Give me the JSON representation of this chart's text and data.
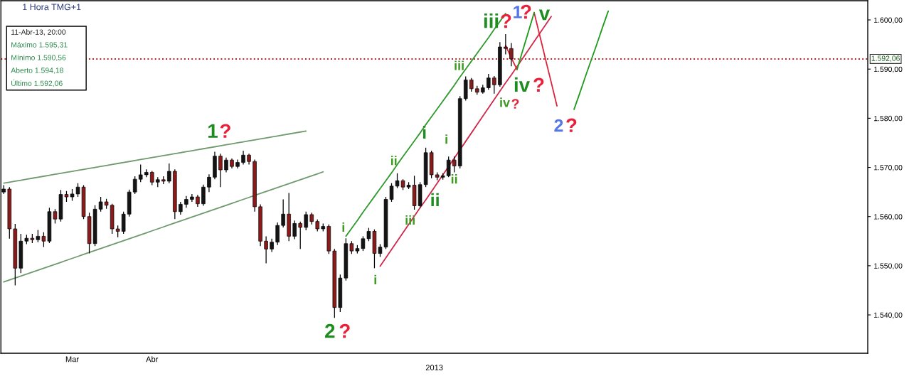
{
  "chart_data": {
    "type": "candlestick",
    "title": "1 Hora TMG+1",
    "xlabel": "2013",
    "categories": [
      null,
      null,
      null,
      null,
      null,
      null,
      null,
      null,
      null,
      null,
      null,
      null,
      "Mar",
      null,
      null,
      null,
      null,
      null,
      null,
      null,
      null,
      null,
      null,
      null,
      null,
      null,
      "Abr",
      null,
      null,
      null,
      null,
      null,
      null,
      null,
      null,
      null,
      null,
      null,
      null,
      null,
      null,
      null,
      null,
      null,
      null,
      null,
      null,
      null,
      null,
      null,
      null,
      null,
      null,
      null,
      null,
      null,
      null,
      null,
      null,
      null,
      null,
      null,
      null,
      null,
      null,
      null,
      null,
      null,
      null,
      null,
      null,
      null,
      null,
      null,
      null,
      null,
      null,
      null,
      null,
      null,
      null,
      null,
      null,
      null,
      null,
      null,
      null,
      null,
      null,
      null,
      null,
      null,
      null,
      null,
      null,
      null,
      null,
      null,
      null,
      null,
      null,
      null,
      null,
      null,
      null,
      null,
      null,
      null,
      null,
      null,
      null,
      null,
      null,
      null,
      null,
      null,
      null,
      null,
      null,
      null,
      null,
      null,
      null,
      null,
      null,
      null,
      null,
      null,
      null,
      null,
      null,
      null,
      null,
      null,
      null,
      null,
      null,
      null,
      null,
      null,
      null,
      null,
      null,
      null,
      null,
      null,
      null,
      null,
      null,
      null,
      null,
      null
    ],
    "ohlc": [
      [
        1565.0,
        1566.4,
        1564.6,
        1565.6
      ],
      [
        1565.6,
        1566.0,
        1555.5,
        1557.5
      ],
      [
        1557.5,
        1558.5,
        1546.0,
        1549.5
      ],
      [
        1549.5,
        1556.5,
        1548.5,
        1555.0
      ],
      [
        1555.0,
        1556.3,
        1554.4,
        1555.6
      ],
      [
        1555.6,
        1556.5,
        1554.6,
        1555.3
      ],
      [
        1555.3,
        1557.3,
        1554.8,
        1556.0
      ],
      [
        1556.0,
        1556.8,
        1553.8,
        1555.0
      ],
      [
        1555.0,
        1561.8,
        1554.6,
        1561.0
      ],
      [
        1561.0,
        1561.5,
        1558.6,
        1559.5
      ],
      [
        1559.5,
        1565.4,
        1559.0,
        1564.5
      ],
      [
        1564.5,
        1565.2,
        1563.0,
        1564.0
      ],
      [
        1564.0,
        1565.6,
        1563.2,
        1564.6
      ],
      [
        1564.6,
        1566.8,
        1564.0,
        1566.0
      ],
      [
        1566.0,
        1566.4,
        1559.5,
        1560.0
      ],
      [
        1560.0,
        1560.8,
        1552.5,
        1554.5
      ],
      [
        1554.5,
        1562.3,
        1554.0,
        1561.5
      ],
      [
        1561.5,
        1564.0,
        1561.0,
        1563.0
      ],
      [
        1563.0,
        1563.6,
        1561.6,
        1562.3
      ],
      [
        1562.3,
        1562.6,
        1556.5,
        1557.5
      ],
      [
        1557.5,
        1558.2,
        1555.8,
        1557.0
      ],
      [
        1557.0,
        1561.0,
        1556.5,
        1560.5
      ],
      [
        1560.5,
        1565.5,
        1560.0,
        1565.0
      ],
      [
        1565.0,
        1568.2,
        1564.6,
        1567.6
      ],
      [
        1567.6,
        1570.6,
        1567.0,
        1568.5
      ],
      [
        1568.5,
        1569.6,
        1568.0,
        1569.0
      ],
      [
        1569.0,
        1569.3,
        1566.4,
        1567.0
      ],
      [
        1567.0,
        1568.0,
        1566.0,
        1567.5
      ],
      [
        1567.5,
        1568.2,
        1566.6,
        1567.2
      ],
      [
        1567.2,
        1570.8,
        1566.8,
        1569.2
      ],
      [
        1569.2,
        1569.6,
        1559.5,
        1561.0
      ],
      [
        1561.0,
        1563.0,
        1560.4,
        1562.5
      ],
      [
        1562.5,
        1564.2,
        1561.8,
        1563.5
      ],
      [
        1563.5,
        1564.6,
        1563.0,
        1564.0
      ],
      [
        1564.0,
        1564.4,
        1562.0,
        1562.6
      ],
      [
        1562.6,
        1566.5,
        1562.2,
        1566.0
      ],
      [
        1566.0,
        1568.6,
        1565.0,
        1568.0
      ],
      [
        1568.0,
        1573.2,
        1567.6,
        1572.3
      ],
      [
        1572.3,
        1572.8,
        1566.0,
        1569.5
      ],
      [
        1569.5,
        1572.0,
        1569.0,
        1571.5
      ],
      [
        1571.5,
        1571.8,
        1569.8,
        1570.2
      ],
      [
        1570.2,
        1571.6,
        1569.8,
        1571.0
      ],
      [
        1571.0,
        1573.4,
        1570.6,
        1572.5
      ],
      [
        1572.5,
        1572.8,
        1570.6,
        1571.2
      ],
      [
        1571.2,
        1571.6,
        1561.0,
        1562.0
      ],
      [
        1562.0,
        1562.5,
        1554.0,
        1555.0
      ],
      [
        1555.0,
        1556.0,
        1550.5,
        1553.4
      ],
      [
        1553.4,
        1555.5,
        1552.8,
        1554.8
      ],
      [
        1554.8,
        1558.8,
        1554.2,
        1558.2
      ],
      [
        1558.2,
        1563.5,
        1557.8,
        1560.5
      ],
      [
        1560.5,
        1564.8,
        1555.0,
        1556.0
      ],
      [
        1556.0,
        1559.2,
        1555.4,
        1558.6
      ],
      [
        1558.6,
        1559.0,
        1553.4,
        1557.8
      ],
      [
        1557.8,
        1561.0,
        1557.2,
        1560.4
      ],
      [
        1560.4,
        1560.8,
        1558.4,
        1559.0
      ],
      [
        1559.0,
        1559.4,
        1557.0,
        1557.5
      ],
      [
        1557.5,
        1558.6,
        1557.0,
        1558.0
      ],
      [
        1558.0,
        1558.4,
        1552.4,
        1553.0
      ],
      [
        1553.0,
        1553.4,
        1539.4,
        1541.5
      ],
      [
        1541.5,
        1548.2,
        1540.6,
        1547.5
      ],
      [
        1547.5,
        1555.6,
        1547.0,
        1554.5
      ],
      [
        1554.5,
        1555.0,
        1552.4,
        1553.0
      ],
      [
        1553.0,
        1554.2,
        1552.5,
        1553.5
      ],
      [
        1553.5,
        1556.0,
        1553.0,
        1555.5
      ],
      [
        1555.5,
        1557.7,
        1555.0,
        1557.0
      ],
      [
        1557.0,
        1557.4,
        1549.5,
        1552.5
      ],
      [
        1552.5,
        1554.4,
        1551.8,
        1553.8
      ],
      [
        1553.8,
        1564.0,
        1553.4,
        1563.5
      ],
      [
        1563.5,
        1566.8,
        1563.0,
        1566.2
      ],
      [
        1566.2,
        1568.8,
        1565.8,
        1567.3
      ],
      [
        1567.3,
        1567.6,
        1565.4,
        1566.0
      ],
      [
        1566.0,
        1567.0,
        1565.6,
        1566.4
      ],
      [
        1566.4,
        1568.3,
        1561.4,
        1562.2
      ],
      [
        1562.2,
        1567.0,
        1561.8,
        1566.5
      ],
      [
        1566.5,
        1574.0,
        1566.0,
        1573.0
      ],
      [
        1573.0,
        1573.4,
        1567.8,
        1568.5
      ],
      [
        1568.5,
        1569.0,
        1567.4,
        1568.0
      ],
      [
        1568.0,
        1568.8,
        1567.5,
        1568.3
      ],
      [
        1568.3,
        1572.2,
        1568.0,
        1571.5
      ],
      [
        1571.5,
        1572.2,
        1569.0,
        1570.3
      ],
      [
        1570.3,
        1584.5,
        1569.8,
        1584.0
      ],
      [
        1584.0,
        1588.5,
        1583.6,
        1587.8
      ],
      [
        1587.8,
        1588.2,
        1585.4,
        1586.0
      ],
      [
        1586.0,
        1586.6,
        1584.8,
        1585.3
      ],
      [
        1585.3,
        1586.8,
        1585.0,
        1586.2
      ],
      [
        1586.2,
        1589.0,
        1585.8,
        1588.2
      ],
      [
        1588.2,
        1588.6,
        1585.0,
        1586.8
      ],
      [
        1586.8,
        1595.5,
        1586.4,
        1594.5
      ],
      [
        1594.5,
        1597.1,
        1593.0,
        1594.2
      ],
      [
        1594.18,
        1595.31,
        1590.56,
        1592.06
      ],
      null,
      null,
      null,
      null,
      null,
      null,
      null,
      null,
      null,
      null,
      null,
      null,
      null,
      null,
      null,
      null,
      null,
      null,
      null,
      null,
      null,
      null,
      null,
      null,
      null,
      null,
      null,
      null,
      null,
      null,
      null,
      null,
      null,
      null,
      null,
      null,
      null,
      null,
      null,
      null,
      null,
      null,
      null,
      null,
      null,
      null,
      null,
      null,
      null,
      null,
      null,
      null,
      null,
      null,
      null,
      null,
      null,
      null,
      null,
      null,
      null,
      null
    ],
    "colors": [
      "#141414",
      "#8b1a1a",
      "#8b1a1a",
      "#141414",
      "#141414",
      "#8b1a1a",
      "#141414",
      "#8b1a1a",
      "#141414",
      "#8b1a1a",
      "#141414",
      "#8b1a1a",
      "#141414",
      "#141414",
      "#8b1a1a",
      "#8b1a1a",
      "#141414",
      "#141414",
      "#8b1a1a",
      "#8b1a1a",
      "#8b1a1a",
      "#141414",
      "#141414",
      "#141414",
      "#141414",
      "#141414",
      "#8b1a1a",
      "#141414",
      "#8b1a1a",
      "#141414",
      "#8b1a1a",
      "#141414",
      "#141414",
      "#141414",
      "#8b1a1a",
      "#141414",
      "#141414",
      "#141414",
      "#8b1a1a",
      "#141414",
      "#8b1a1a",
      "#141414",
      "#141414",
      "#8b1a1a",
      "#8b1a1a",
      "#8b1a1a",
      "#8b1a1a",
      "#141414",
      "#141414",
      "#141414",
      "#8b1a1a",
      "#141414",
      "#8b1a1a",
      "#141414",
      "#8b1a1a",
      "#8b1a1a",
      "#141414",
      "#8b1a1a",
      "#8b1a1a",
      "#141414",
      "#141414",
      "#8b1a1a",
      "#141414",
      "#141414",
      "#141414",
      "#8b1a1a",
      "#141414",
      "#141414",
      "#141414",
      "#141414",
      "#8b1a1a",
      "#141414",
      "#8b1a1a",
      "#141414",
      "#141414",
      "#8b1a1a",
      "#8b1a1a",
      "#141414",
      "#141414",
      "#8b1a1a",
      "#141414",
      "#141414",
      "#8b1a1a",
      "#8b1a1a",
      "#141414",
      "#141414",
      "#8b1a1a",
      "#141414",
      "#8b1a1a",
      "#8b1a1a",
      null,
      null,
      null,
      null,
      null,
      null,
      null,
      null,
      null,
      null,
      null,
      null,
      null,
      null,
      null,
      null,
      null,
      null,
      null,
      null,
      null,
      null,
      null,
      null,
      null,
      null,
      null,
      null,
      null,
      null,
      null,
      null,
      null,
      null,
      null,
      null,
      null,
      null,
      null,
      null,
      null,
      null,
      null,
      null,
      null,
      null,
      null,
      null,
      null,
      null,
      null,
      null,
      null,
      null,
      null,
      null,
      null,
      null,
      null,
      null,
      null,
      null
    ],
    "series": [
      {
        "type": "line",
        "color": "#6f9a6f",
        "values": [
          1566.8,
          1567.0,
          1567.2,
          1567.4,
          1567.6,
          1567.8,
          1568.0,
          1568.2,
          1568.4,
          1568.6,
          1568.8,
          1569.0,
          1569.2,
          1569.4,
          1569.6,
          1569.8,
          1570.0,
          1570.2,
          1570.4,
          1570.6,
          1570.8,
          1571.0,
          1571.2,
          1571.4,
          1571.6,
          1571.8,
          1572.0,
          1572.2,
          1572.4,
          1572.6,
          1572.8,
          1573.0,
          1573.2,
          1573.4,
          1573.6,
          1573.8,
          1574.0,
          1574.2,
          1574.4,
          1574.6,
          1574.8,
          1575.0,
          1575.2,
          1575.4,
          1575.6,
          1575.8,
          1576.0,
          1576.2,
          1576.4,
          1576.6,
          1576.8,
          1577.0,
          1577.2,
          1577.4,
          null,
          null,
          null,
          null,
          null,
          null,
          null,
          null,
          null,
          null,
          null,
          null,
          null,
          null,
          null,
          null,
          null,
          null,
          null,
          null,
          null,
          null,
          null,
          null,
          null,
          null,
          null,
          null,
          null,
          null,
          null,
          null,
          null,
          null,
          null,
          null,
          null,
          null,
          null,
          null,
          null,
          null,
          null,
          null,
          null,
          null,
          null,
          null,
          null,
          null,
          null,
          null,
          null,
          null,
          null,
          null,
          null,
          null,
          null,
          null,
          null,
          null,
          null,
          null,
          null,
          null,
          null,
          null,
          null,
          null,
          null,
          null,
          null,
          null,
          null,
          null,
          null,
          null,
          null,
          null,
          null,
          null,
          null,
          null,
          null,
          null,
          null,
          null,
          null,
          null,
          null,
          null,
          null,
          null,
          null,
          null,
          null,
          null
        ]
      },
      {
        "type": "line",
        "color": "#6f9a6f",
        "values": [
          1546.7,
          1547.1,
          1547.5,
          1547.9,
          1548.3,
          1548.7,
          1549.1,
          1549.5,
          1549.9,
          1550.3,
          1550.7,
          1551.1,
          1551.5,
          1551.9,
          1552.3,
          1552.7,
          1553.1,
          1553.5,
          1553.9,
          1554.3,
          1554.7,
          1555.1,
          1555.5,
          1555.9,
          1556.3,
          1556.7,
          1557.1,
          1557.5,
          1557.9,
          1558.3,
          1558.7,
          1559.1,
          1559.5,
          1559.9,
          1560.3,
          1560.7,
          1561.1,
          1561.5,
          1561.9,
          1562.3,
          1562.7,
          1563.1,
          1563.5,
          1563.9,
          1564.3,
          1564.7,
          1565.1,
          1565.5,
          1565.9,
          1566.3,
          1566.7,
          1567.1,
          1567.5,
          1567.9,
          1568.3,
          1568.7,
          1569.1,
          null,
          null,
          null,
          null,
          null,
          null,
          null,
          null,
          null,
          null,
          null,
          null,
          null,
          null,
          null,
          null,
          null,
          null,
          null,
          null,
          null,
          null,
          null,
          null,
          null,
          null,
          null,
          null,
          null,
          null,
          null,
          null,
          null,
          null,
          null,
          null,
          null,
          null,
          null,
          null,
          null,
          null,
          null,
          null,
          null,
          null,
          null,
          null,
          null,
          null,
          null,
          null,
          null,
          null,
          null,
          null,
          null,
          null,
          null,
          null,
          null,
          null,
          null,
          null,
          null,
          null,
          null,
          null,
          null,
          null,
          null,
          null,
          null,
          null,
          null,
          null,
          null,
          null,
          null,
          null,
          null,
          null,
          null,
          null,
          null,
          null,
          null,
          null,
          null,
          null,
          null,
          null,
          null,
          null,
          null
        ]
      },
      {
        "type": "line",
        "color": "#2e9a2e",
        "values": [
          null,
          null,
          null,
          null,
          null,
          null,
          null,
          null,
          null,
          null,
          null,
          null,
          null,
          null,
          null,
          null,
          null,
          null,
          null,
          null,
          null,
          null,
          null,
          null,
          null,
          null,
          null,
          null,
          null,
          null,
          null,
          null,
          null,
          null,
          null,
          null,
          null,
          null,
          null,
          null,
          null,
          null,
          null,
          null,
          null,
          null,
          null,
          null,
          null,
          null,
          null,
          null,
          null,
          null,
          null,
          null,
          null,
          null,
          null,
          null,
          1556.0,
          1557.6,
          1559.2,
          1560.9,
          1562.5,
          1564.1,
          1565.7,
          1567.3,
          1568.9,
          1570.6,
          1572.2,
          1573.8,
          1575.4,
          1577.0,
          1578.7,
          1580.3,
          1581.9,
          1583.5,
          1585.1,
          1586.7,
          1588.4,
          1590.0,
          1591.6,
          1593.2,
          1594.8,
          1596.4,
          1598.1,
          1599.7,
          1601.3,
          null,
          null,
          null,
          null,
          null,
          null,
          null,
          null,
          null,
          null,
          null,
          null,
          null,
          null,
          null,
          null,
          null,
          null,
          null,
          null,
          null,
          null,
          null,
          null,
          null,
          null,
          null,
          null,
          null,
          null,
          null,
          null,
          null,
          null,
          null,
          null,
          null,
          null,
          null,
          null,
          null,
          null,
          null,
          null,
          null,
          null,
          null,
          null,
          null,
          null,
          null,
          null,
          null,
          null,
          null,
          null,
          null,
          null,
          null,
          null,
          null,
          null,
          null
        ]
      },
      {
        "type": "line",
        "color": "#d0284a",
        "values": [
          null,
          null,
          null,
          null,
          null,
          null,
          null,
          null,
          null,
          null,
          null,
          null,
          null,
          null,
          null,
          null,
          null,
          null,
          null,
          null,
          null,
          null,
          null,
          null,
          null,
          null,
          null,
          null,
          null,
          null,
          null,
          null,
          null,
          null,
          null,
          null,
          null,
          null,
          null,
          null,
          null,
          null,
          null,
          null,
          null,
          null,
          null,
          null,
          null,
          null,
          null,
          null,
          null,
          null,
          null,
          null,
          null,
          null,
          null,
          null,
          null,
          null,
          null,
          null,
          null,
          null,
          1549.9,
          1551.6,
          1553.3,
          1555.0,
          1556.7,
          1558.4,
          1560.1,
          1561.8,
          1563.4,
          1565.1,
          1566.8,
          1568.5,
          1570.2,
          1571.9,
          1573.6,
          1575.3,
          1577.0,
          1578.7,
          1580.4,
          1582.1,
          1583.8,
          1585.5,
          1587.2,
          1588.8,
          1590.5,
          1592.2,
          1593.9,
          1595.6,
          1597.3,
          1599.0,
          1600.7,
          null,
          null,
          null,
          null,
          null,
          null,
          null,
          null,
          null,
          null,
          null,
          null,
          null,
          null,
          null,
          null,
          null,
          null,
          null,
          null,
          null,
          null,
          null,
          null,
          null,
          null,
          null,
          null,
          null,
          null,
          null,
          null,
          null,
          null,
          null,
          null,
          null,
          null,
          null,
          null,
          null,
          null,
          null,
          null,
          null,
          null,
          null,
          null,
          null,
          null,
          null,
          null,
          null,
          null,
          null
        ]
      },
      {
        "type": "line",
        "color": "#e0203a",
        "values": [
          null,
          null,
          null,
          null,
          null,
          null,
          null,
          null,
          null,
          null,
          null,
          null,
          null,
          null,
          null,
          null,
          null,
          null,
          null,
          null,
          null,
          null,
          null,
          null,
          null,
          null,
          null,
          null,
          null,
          null,
          null,
          null,
          null,
          null,
          null,
          null,
          null,
          null,
          null,
          null,
          null,
          null,
          null,
          null,
          null,
          null,
          null,
          null,
          null,
          null,
          null,
          null,
          null,
          null,
          null,
          null,
          null,
          null,
          null,
          null,
          null,
          null,
          null,
          null,
          null,
          null,
          null,
          null,
          null,
          null,
          null,
          null,
          null,
          null,
          null,
          null,
          null,
          null,
          null,
          null,
          null,
          null,
          null,
          null,
          null,
          null,
          null,
          null,
          1594.8,
          1592.3,
          1589.9,
          null,
          null,
          1601.5,
          1596.8,
          1592.0,
          1587.3,
          1582.5,
          null,
          null,
          null,
          null,
          null,
          null,
          null,
          null,
          null,
          null,
          null,
          null,
          null,
          null,
          null,
          null,
          null,
          null,
          null,
          null,
          null,
          null,
          null,
          null,
          null,
          null,
          null,
          null,
          null,
          null,
          null,
          null,
          null,
          null,
          null,
          null,
          null,
          null,
          null,
          null,
          null,
          null,
          null,
          null,
          null,
          null,
          null,
          null,
          null,
          null,
          null,
          null,
          null,
          null
        ]
      },
      {
        "type": "line",
        "color": "#1f9a1f",
        "values": [
          null,
          null,
          null,
          null,
          null,
          null,
          null,
          null,
          null,
          null,
          null,
          null,
          null,
          null,
          null,
          null,
          null,
          null,
          null,
          null,
          null,
          null,
          null,
          null,
          null,
          null,
          null,
          null,
          null,
          null,
          null,
          null,
          null,
          null,
          null,
          null,
          null,
          null,
          null,
          null,
          null,
          null,
          null,
          null,
          null,
          null,
          null,
          null,
          null,
          null,
          null,
          null,
          null,
          null,
          null,
          null,
          null,
          null,
          null,
          null,
          null,
          null,
          null,
          null,
          null,
          null,
          null,
          null,
          null,
          null,
          null,
          null,
          null,
          null,
          null,
          null,
          null,
          null,
          null,
          null,
          null,
          null,
          null,
          null,
          null,
          null,
          null,
          null,
          null,
          null,
          1589.9,
          1593.8,
          1597.6,
          1601.5,
          null,
          null,
          null,
          null,
          null,
          null,
          1581.8,
          1585.1,
          1588.5,
          1591.8,
          1595.1,
          1598.5,
          1601.8,
          null,
          null,
          null,
          null,
          null,
          null,
          null,
          null,
          null,
          null,
          null,
          null,
          null,
          null,
          null,
          null,
          null,
          null,
          null,
          null,
          null,
          null,
          null,
          null,
          null,
          null,
          null,
          null,
          null,
          null,
          null,
          null,
          null,
          null,
          null,
          null,
          null,
          null,
          null,
          null,
          null,
          null,
          null,
          null,
          null
        ]
      }
    ],
    "ref_lines": [
      {
        "axis": "y",
        "value": 1592.06,
        "label": "1.592,06",
        "color": "#b22222",
        "line_style": "dotted"
      }
    ],
    "ylim": [
      1532.2,
      1603.9
    ],
    "yticks": [
      {
        "value": 1540,
        "label": "1.540,00"
      },
      {
        "value": 1550,
        "label": "1.550,00"
      },
      {
        "value": 1560,
        "label": "1.560,00"
      },
      {
        "value": 1570,
        "label": "1.570,00"
      },
      {
        "value": 1580,
        "label": "1.580,00"
      },
      {
        "value": 1590,
        "label": "1.590,00"
      },
      {
        "value": 1600,
        "label": "1.600,00"
      }
    ],
    "annotations": [
      "11-Abr-13, 20:00",
      "Máximo 1.595,31",
      "Mínimo 1.590,56",
      "Aberto 1.594,18",
      "Último 1.592,06",
      "1",
      "?",
      "2",
      "?",
      "i",
      "i",
      "ii",
      "iii",
      "i",
      "ii",
      "i",
      "ii",
      "iii",
      "iii",
      "?",
      "iv",
      "?",
      "1",
      "?",
      "v",
      "iv",
      "?",
      "2",
      "?"
    ]
  }
}
